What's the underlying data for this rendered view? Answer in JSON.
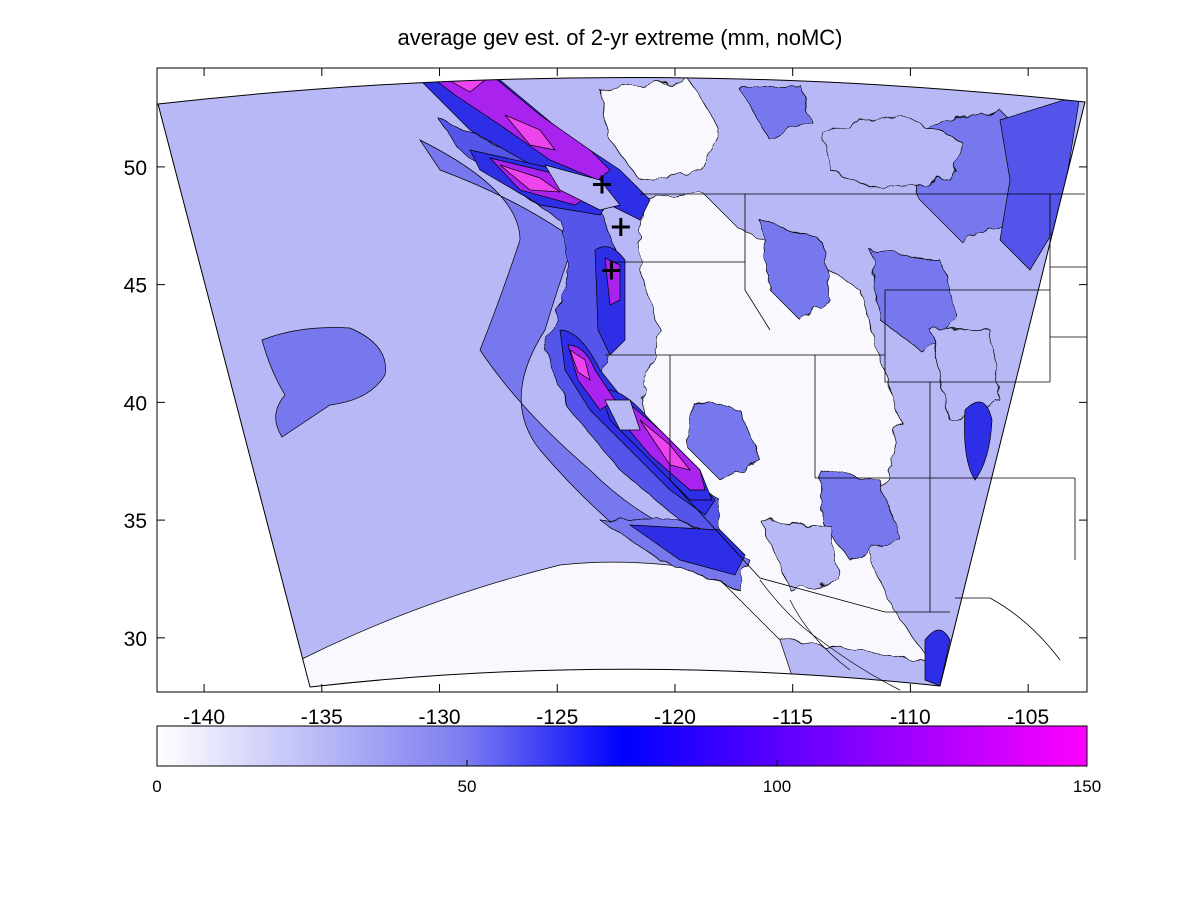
{
  "title": "average gev est. of 2-yr extreme (mm, noMC)",
  "map": {
    "lon_range": [
      -142,
      -102.5
    ],
    "lat_range": [
      27.7,
      54.2
    ],
    "lon_ticks": [
      -140,
      -135,
      -130,
      -125,
      -120,
      -115,
      -110,
      -105
    ],
    "lat_ticks": [
      30,
      35,
      40,
      45,
      50
    ],
    "lon_tick_labels": [
      "-140",
      "-135",
      "-130",
      "-125",
      "-120",
      "-115",
      "-110",
      "-105"
    ],
    "lat_tick_labels": [
      "30",
      "35",
      "40",
      "45",
      "50"
    ],
    "markers": [
      {
        "lon": -123.1,
        "lat": 49.25
      },
      {
        "lon": -122.3,
        "lat": 47.45
      },
      {
        "lon": -122.7,
        "lat": 45.6
      }
    ]
  },
  "colorbar": {
    "min": 0,
    "max": 150,
    "tick_values": [
      0,
      50,
      100,
      150
    ],
    "tick_labels": [
      "0",
      "50",
      "100",
      "150"
    ],
    "colors": [
      "#ffffff",
      "#7b7bf0",
      "#0000ff",
      "#ff00ff"
    ]
  },
  "colors": {
    "ocean_low": "#f8f8fe",
    "ocean": "#b8b8f6",
    "coastal": "#7878ee",
    "mid": "#5454ea",
    "high": "#2e2ee6",
    "peak": "#aa22ee",
    "extreme": "#ee44ee"
  }
}
